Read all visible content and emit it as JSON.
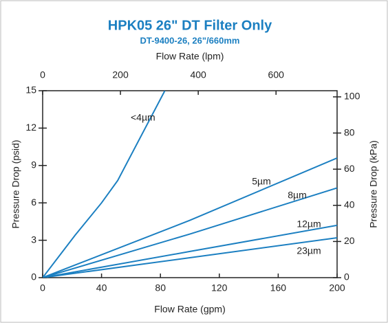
{
  "chart_data": {
    "type": "line",
    "title": "HPK05 26\" DT Filter Only",
    "subtitle": "DT-9400-26, 26\"/660mm",
    "xlabel": "Flow Rate  (gpm)",
    "x2label": "Flow Rate  (lpm)",
    "ylabel": "Pressure Drop  (psid)",
    "y2label": "Pressure Drop  (kPa)",
    "xlim": [
      0,
      200
    ],
    "xticks": [
      0,
      40,
      80,
      120,
      160,
      200
    ],
    "x2lim": [
      0,
      757
    ],
    "x2ticks": [
      0,
      200,
      400,
      600
    ],
    "ylim": [
      0,
      15
    ],
    "yticks": [
      0,
      3,
      6,
      9,
      12,
      15
    ],
    "y2lim": [
      0,
      103.4
    ],
    "y2ticks": [
      0,
      20,
      40,
      60,
      80,
      100
    ],
    "grid": false,
    "series": [
      {
        "name": "<4µm",
        "color": "#1b7fc1",
        "x": [
          0,
          22,
          40,
          51,
          83
        ],
        "values": [
          0,
          3.4,
          6,
          7.8,
          15
        ]
      },
      {
        "name": "5µm",
        "color": "#1b7fc1",
        "x": [
          0,
          100,
          200
        ],
        "values": [
          0,
          4.6,
          9.6
        ]
      },
      {
        "name": "8µm",
        "color": "#1b7fc1",
        "x": [
          0,
          100,
          200
        ],
        "values": [
          0,
          3.5,
          7.2
        ]
      },
      {
        "name": "12µm",
        "color": "#1b7fc1",
        "x": [
          0,
          100,
          200
        ],
        "values": [
          0,
          2.1,
          4.2
        ]
      },
      {
        "name": "23µm",
        "color": "#1b7fc1",
        "x": [
          0,
          100,
          200
        ],
        "values": [
          0,
          1.6,
          3.2
        ]
      }
    ]
  }
}
